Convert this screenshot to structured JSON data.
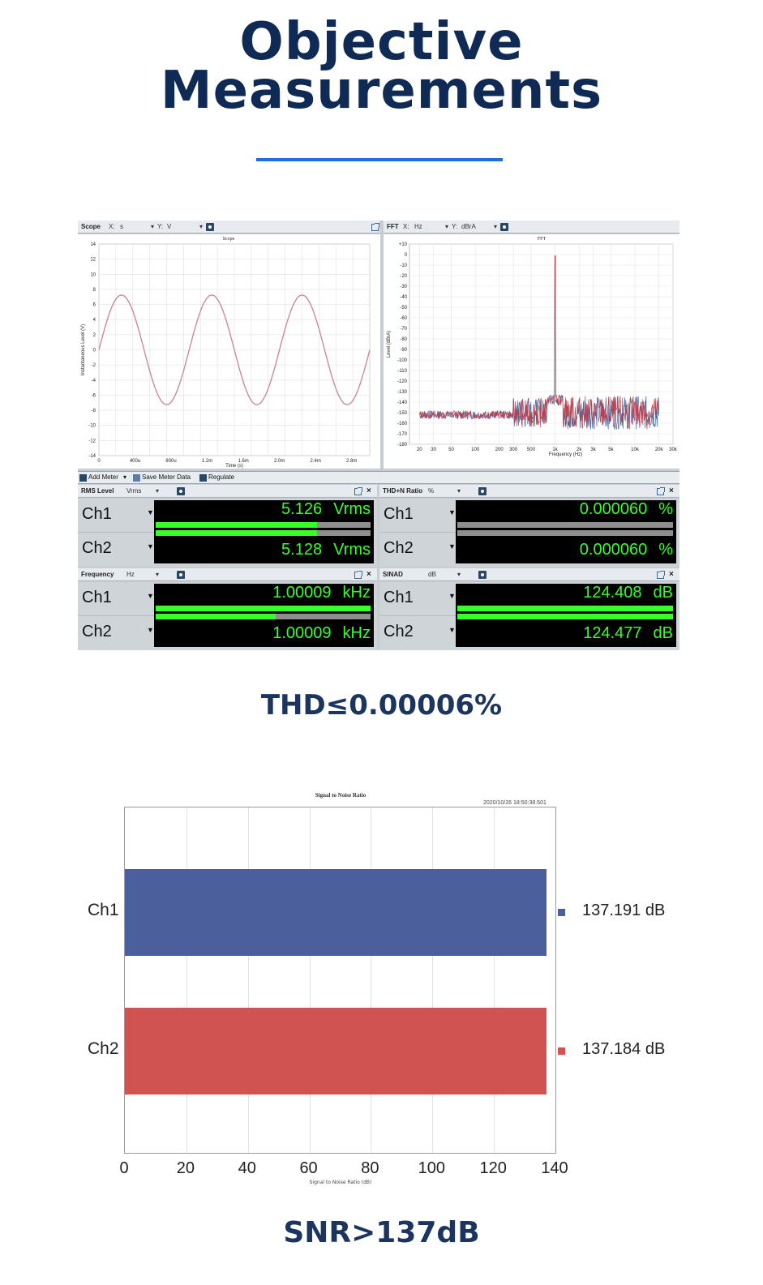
{
  "header": {
    "title_line1": "Objective",
    "title_line2": "Measurements",
    "rule_color": "#1e6fd9"
  },
  "apx": {
    "scope": {
      "panel_label": "Scope",
      "x_axis": "X:",
      "x_unit": "s",
      "y_axis": "Y:",
      "y_unit": "V",
      "graph_title": "Scope",
      "ylabel": "Instantaneous Level (V)",
      "xlabel": "Time (s)",
      "y_ticks": [
        "14",
        "12",
        "10",
        "8",
        "6",
        "4",
        "2",
        "0",
        "-2",
        "-4",
        "-6",
        "-8",
        "-10",
        "-12",
        "-14"
      ],
      "x_ticks": [
        "0",
        "400u",
        "800u",
        "1.2m",
        "1.6m",
        "2.0m",
        "2.4m",
        "2.8m"
      ]
    },
    "fft": {
      "panel_label": "FFT",
      "x_axis": "X:",
      "x_unit": "Hz",
      "y_axis": "Y:",
      "y_unit": "dBrA",
      "graph_title": "FFT",
      "ylabel": "Level (dBrA)",
      "xlabel": "Frequency (Hz)",
      "y_ticks": [
        "+10",
        "0",
        "-10",
        "-20",
        "-30",
        "-40",
        "-50",
        "-60",
        "-70",
        "-80",
        "-90",
        "-100",
        "-110",
        "-120",
        "-130",
        "-140",
        "-150",
        "-160",
        "-170",
        "-180"
      ],
      "x_ticks": [
        "20",
        "30",
        "50",
        "100",
        "200",
        "300",
        "500",
        "1k",
        "2k",
        "3k",
        "5k",
        "10k",
        "20k",
        "30k"
      ]
    },
    "toolbar": {
      "add_meter": "Add Meter",
      "save_meter_data": "Save Meter Data",
      "regulate": "Regulate"
    },
    "meters": [
      {
        "label": "RMS Level",
        "unit_select": "Vrms",
        "rows": [
          {
            "ch": "Ch1",
            "value": "5.126",
            "unit": "Vrms"
          },
          {
            "ch": "Ch2",
            "value": "5.128",
            "unit": "Vrms"
          }
        ],
        "bar_fill": [
          0.75,
          0.75
        ]
      },
      {
        "label": "THD+N Ratio",
        "unit_select": "%",
        "rows": [
          {
            "ch": "Ch1",
            "value": "0.000060",
            "unit": "%"
          },
          {
            "ch": "Ch2",
            "value": "0.000060",
            "unit": "%"
          }
        ],
        "bar_fill": [
          0.0,
          0.0
        ]
      },
      {
        "label": "Frequency",
        "unit_select": "Hz",
        "rows": [
          {
            "ch": "Ch1",
            "value": "1.00009",
            "unit": "kHz"
          },
          {
            "ch": "Ch2",
            "value": "1.00009",
            "unit": "kHz"
          }
        ],
        "bar_fill": [
          1.0,
          0.56
        ]
      },
      {
        "label": "SINAD",
        "unit_select": "dB",
        "rows": [
          {
            "ch": "Ch1",
            "value": "124.408",
            "unit": "dB"
          },
          {
            "ch": "Ch2",
            "value": "124.477",
            "unit": "dB"
          }
        ],
        "bar_fill": [
          1.0,
          1.0
        ]
      }
    ],
    "meter_green": "#38ff2a"
  },
  "thd_caption": "THD≤0.00006%",
  "snr_chart": {
    "title": "Signal to Noise Ratio",
    "timestamp": "2020/10/26 18:50:38.501",
    "xlabel": "Signal to Noise Ratio (dB)",
    "x_ticks": [
      "0",
      "20",
      "40",
      "60",
      "80",
      "100",
      "120",
      "140"
    ],
    "legend": [
      {
        "name": "Ch1",
        "text": "137.191 dB",
        "color": "#4a5f9c"
      },
      {
        "name": "Ch2",
        "text": "137.184 dB",
        "color": "#d05352"
      }
    ]
  },
  "chart_data": {
    "type": "bar",
    "orientation": "horizontal",
    "title": "Signal to Noise Ratio",
    "categories": [
      "Ch1",
      "Ch2"
    ],
    "values": [
      137.191,
      137.184
    ],
    "xlabel": "Signal to Noise Ratio (dB)",
    "xlim": [
      0,
      140
    ],
    "grid": true,
    "legend": "right"
  },
  "snr_caption": "SNR>137dB"
}
